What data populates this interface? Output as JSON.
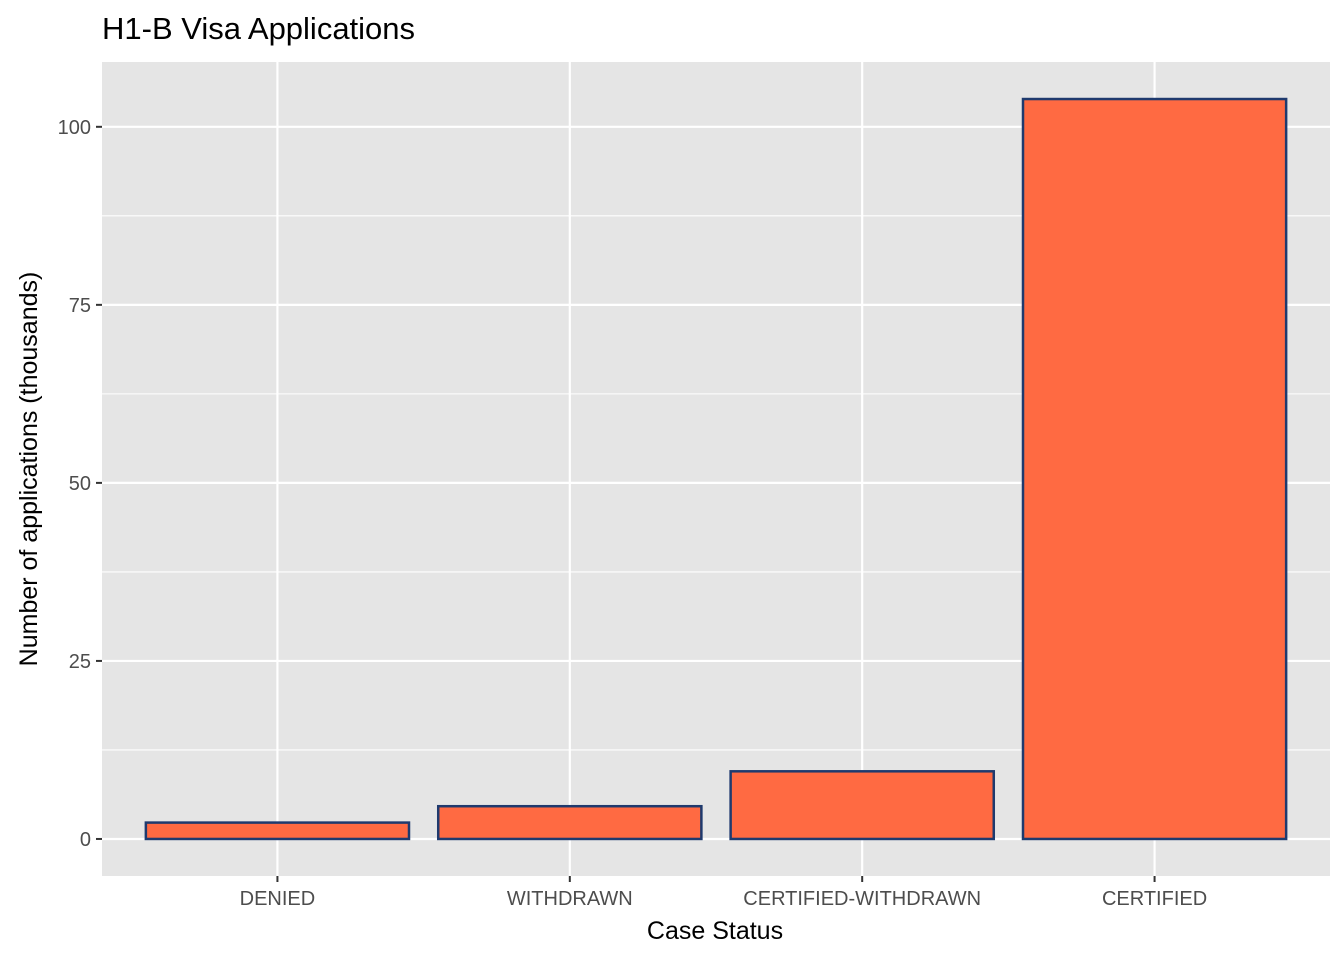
{
  "chart_data": {
    "type": "bar",
    "title": "H1-B Visa Applications",
    "xlabel": "Case Status",
    "ylabel": "Number of applications (thousands)",
    "categories": [
      "DENIED",
      "WITHDRAWN",
      "CERTIFIED-WITHDRAWN",
      "CERTIFIED"
    ],
    "values": [
      2.3,
      4.6,
      9.5,
      103.9
    ],
    "ylim": [
      -5.2,
      109.1
    ],
    "yticks": [
      0,
      25,
      50,
      75,
      100
    ],
    "grid": true,
    "legend": "none",
    "colors": {
      "panel": "#e5e5e5",
      "grid": "#ffffff",
      "bar_fill": "#ff6a42",
      "bar_stroke": "#1f3a6e",
      "tick_text": "#4d4d4d",
      "tick_mark": "#333333"
    }
  }
}
